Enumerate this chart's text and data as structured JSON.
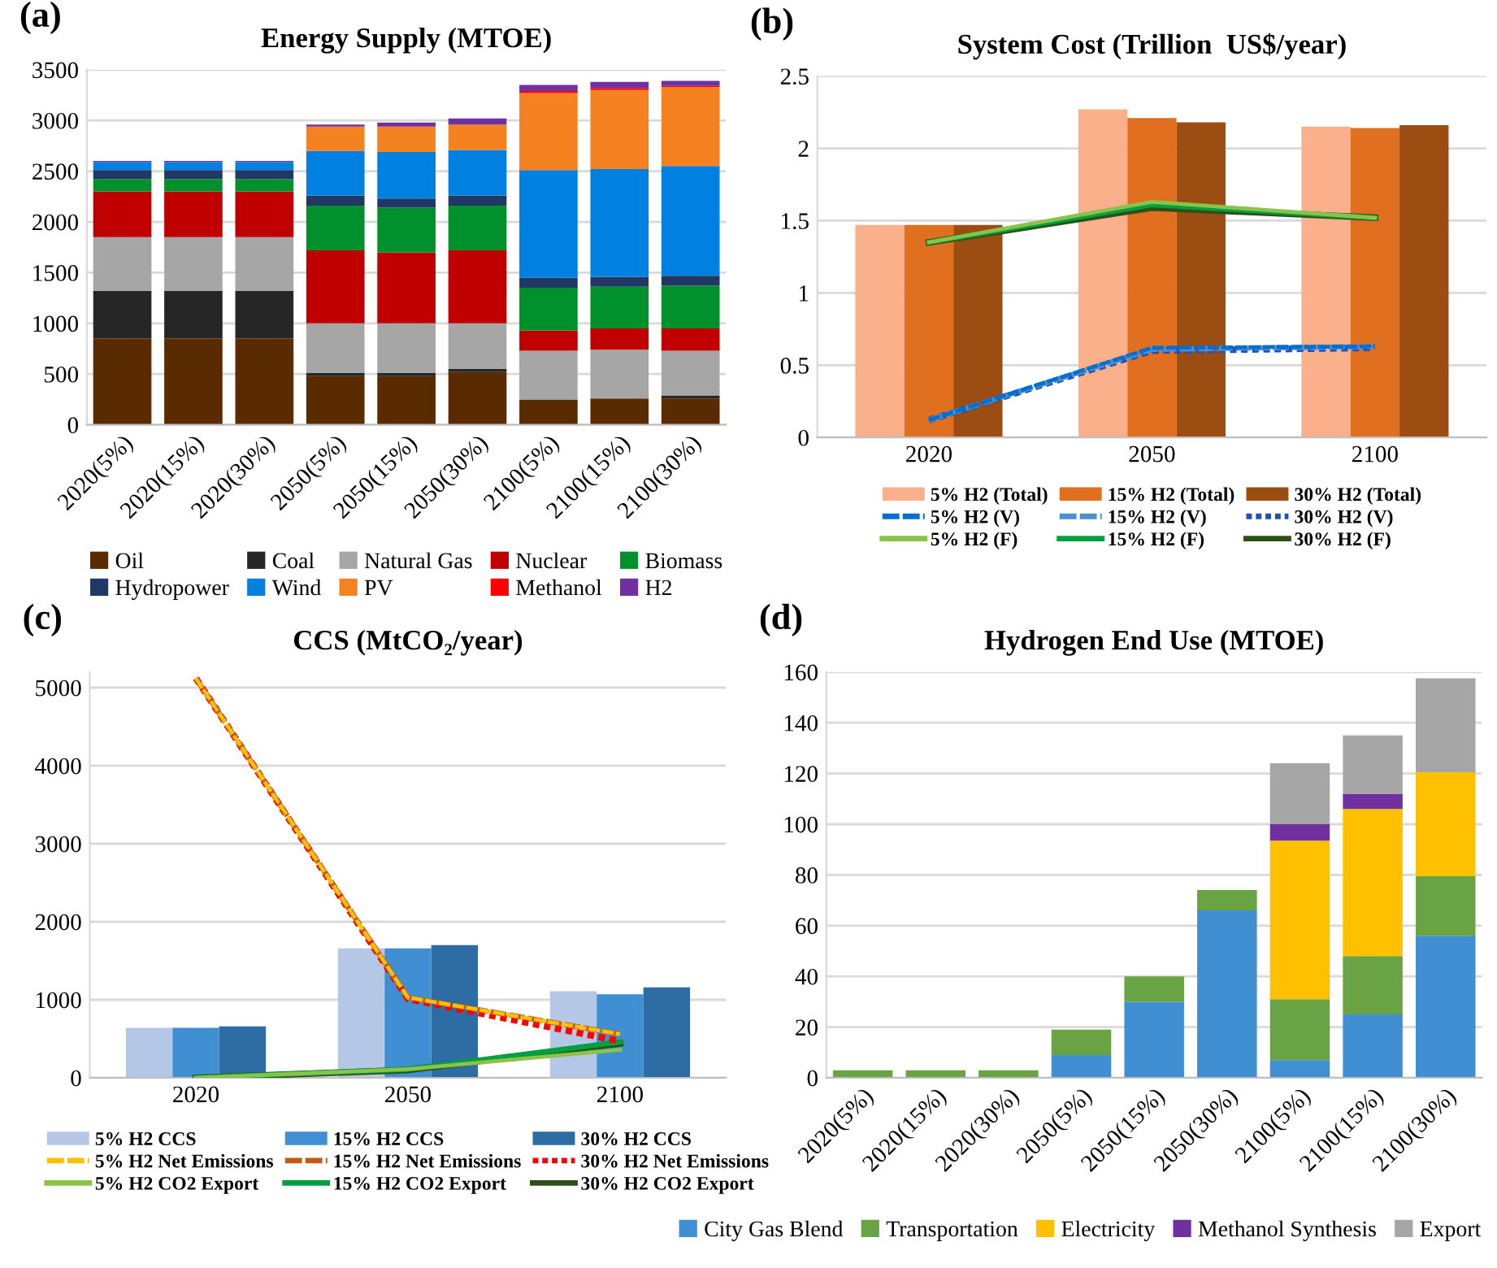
{
  "chart_data": [
    {
      "type": "bar",
      "title": "Energy Supply (MTOE)",
      "annotations": [
        "(a)"
      ],
      "stacked": true,
      "grid": "y",
      "legend": "bottom",
      "categories": [
        "2020(5%)",
        "2020(15%)",
        "2020(30%)",
        "2050(5%)",
        "2050(15%)",
        "2050(30%)",
        "2100(5%)",
        "2100(15%)",
        "2100(30%)"
      ],
      "ylim": [
        0,
        3500
      ],
      "yticks": [
        0,
        500,
        1000,
        1500,
        2000,
        2500,
        3000,
        3500
      ],
      "series": [
        {
          "name": "Oil",
          "color": "#5a2a00",
          "values": [
            850,
            850,
            850,
            480,
            480,
            520,
            250,
            260,
            260
          ]
        },
        {
          "name": "Coal",
          "color": "#262626",
          "values": [
            470,
            470,
            470,
            30,
            30,
            30,
            0,
            0,
            30
          ]
        },
        {
          "name": "Natural Gas",
          "color": "#a6a6a6",
          "values": [
            530,
            530,
            530,
            490,
            490,
            450,
            480,
            480,
            440
          ]
        },
        {
          "name": "Nuclear",
          "color": "#c00000",
          "values": [
            450,
            450,
            450,
            720,
            700,
            720,
            200,
            210,
            220
          ]
        },
        {
          "name": "Biomass",
          "color": "#00902c",
          "values": [
            120,
            120,
            120,
            440,
            440,
            440,
            420,
            410,
            420
          ]
        },
        {
          "name": "Hydropower",
          "color": "#1f3864",
          "values": [
            90,
            90,
            90,
            100,
            90,
            100,
            100,
            100,
            100
          ]
        },
        {
          "name": "Wind",
          "color": "#0080e0",
          "values": [
            80,
            80,
            80,
            440,
            460,
            450,
            1060,
            1060,
            1080
          ]
        },
        {
          "name": "PV",
          "color": "#f58220",
          "values": [
            0,
            0,
            0,
            240,
            250,
            250,
            760,
            780,
            780
          ]
        },
        {
          "name": "Methanol",
          "color": "#ff0000",
          "values": [
            0,
            0,
            0,
            0,
            0,
            0,
            20,
            20,
            10
          ]
        },
        {
          "name": "H2",
          "color": "#7030a0",
          "values": [
            10,
            10,
            10,
            20,
            40,
            60,
            60,
            60,
            50
          ]
        }
      ]
    },
    {
      "type": "bar",
      "title": "System Cost (Trillion  US$/year)",
      "annotations": [
        "(b)"
      ],
      "grid": "y",
      "legend": "bottom",
      "categories": [
        "2020",
        "2050",
        "2100"
      ],
      "ylim": [
        0,
        2.5
      ],
      "yticks": [
        0,
        0.5,
        1,
        1.5,
        2,
        2.5
      ],
      "series": [
        {
          "name": "5% H2 (Total)",
          "color": "#fbb08c",
          "values": [
            1.47,
            2.27,
            2.15
          ]
        },
        {
          "name": "15% H2 (Total)",
          "color": "#e07020",
          "values": [
            1.47,
            2.21,
            2.14
          ]
        },
        {
          "name": "30% H2 (Total)",
          "color": "#9c4d12",
          "values": [
            1.47,
            2.18,
            2.16
          ]
        },
        {
          "name": "5% H2 (V)",
          "type": "line",
          "line_style": "dashed",
          "color": "#0070d0",
          "values": [
            0.12,
            0.62,
            0.63
          ]
        },
        {
          "name": "15% H2 (V)",
          "type": "line",
          "line_style": "dashed",
          "color": "#4a90d0",
          "values": [
            0.12,
            0.61,
            0.63
          ]
        },
        {
          "name": "30% H2 (V)",
          "type": "line",
          "line_style": "dotted",
          "color": "#2050c0",
          "values": [
            0.12,
            0.6,
            0.62
          ]
        },
        {
          "name": "5% H2 (F)",
          "type": "line",
          "line_style": "solid",
          "color": "#8bc34a",
          "values": [
            1.35,
            1.63,
            1.52
          ]
        },
        {
          "name": "15% H2 (F)",
          "type": "line",
          "line_style": "solid",
          "color": "#00a040",
          "values": [
            1.35,
            1.61,
            1.52
          ]
        },
        {
          "name": "30% H2 (F)",
          "type": "line",
          "line_style": "solid",
          "color": "#2d5016",
          "values": [
            1.35,
            1.59,
            1.52
          ]
        }
      ]
    },
    {
      "type": "bar",
      "title": "CCS (MtCO₂/year)",
      "annotations": [
        "(c)"
      ],
      "grid": "y",
      "legend": "bottom",
      "categories": [
        "2020",
        "2050",
        "2100"
      ],
      "ylim": [
        0,
        5200
      ],
      "yticks": [
        0,
        1000,
        2000,
        3000,
        4000,
        5000
      ],
      "series": [
        {
          "name": "5% H2 CCS",
          "color": "#b4c7e7",
          "values": [
            640,
            1660,
            1110
          ]
        },
        {
          "name": "15% H2 CCS",
          "color": "#3f8fd2",
          "values": [
            640,
            1660,
            1070
          ]
        },
        {
          "name": "30% H2 CCS",
          "color": "#2e6da4",
          "values": [
            660,
            1700,
            1160
          ]
        },
        {
          "name": "5% H2 Net Emissions",
          "type": "line",
          "line_style": "dashed",
          "color": "#ffc000",
          "values": [
            5120,
            1030,
            560
          ]
        },
        {
          "name": "15% H2 Net Emissions",
          "type": "line",
          "line_style": "dashed",
          "color": "#c55a11",
          "values": [
            5120,
            1030,
            560
          ]
        },
        {
          "name": "30% H2 Net Emissions",
          "type": "line",
          "line_style": "dotted",
          "color": "#ff0000",
          "values": [
            5120,
            1010,
            470
          ]
        },
        {
          "name": "5% H2 CO2 Export",
          "type": "line",
          "line_style": "solid",
          "color": "#8bc34a",
          "values": [
            0,
            110,
            360
          ]
        },
        {
          "name": "15% H2 CO2 Export",
          "type": "line",
          "line_style": "solid",
          "color": "#00a040",
          "values": [
            0,
            110,
            460
          ]
        },
        {
          "name": "30% H2 CO2 Export",
          "type": "line",
          "line_style": "solid",
          "color": "#2d5016",
          "values": [
            0,
            100,
            440
          ]
        }
      ]
    },
    {
      "type": "bar",
      "title": "Hydrogen End Use (MTOE)",
      "annotations": [
        "(d)"
      ],
      "stacked": true,
      "grid": "y",
      "legend": "bottom",
      "categories": [
        "2020(5%)",
        "2020(15%)",
        "2020(30%)",
        "2050(5%)",
        "2050(15%)",
        "2050(30%)",
        "2100(5%)",
        "2100(15%)",
        "2100(30%)"
      ],
      "ylim": [
        0,
        160
      ],
      "yticks": [
        0,
        20,
        40,
        60,
        80,
        100,
        120,
        140,
        160
      ],
      "series": [
        {
          "name": "City Gas Blend",
          "color": "#3f8fd2",
          "values": [
            0,
            0,
            0,
            9,
            30,
            66,
            7,
            25,
            56
          ]
        },
        {
          "name": "Transportation",
          "color": "#6aa343",
          "values": [
            3,
            3,
            3,
            10,
            10,
            8,
            24,
            23,
            23.5
          ]
        },
        {
          "name": "Electricity",
          "color": "#ffc000",
          "values": [
            0,
            0,
            0,
            0,
            0,
            0,
            62.5,
            58,
            41
          ]
        },
        {
          "name": "Methanol Synthesis",
          "color": "#7030a0",
          "values": [
            0,
            0,
            0,
            0,
            0,
            0,
            6.5,
            6,
            0
          ]
        },
        {
          "name": "Export",
          "color": "#a6a6a6",
          "values": [
            0,
            0,
            0,
            0,
            0,
            0,
            24,
            23,
            37
          ]
        }
      ]
    }
  ]
}
